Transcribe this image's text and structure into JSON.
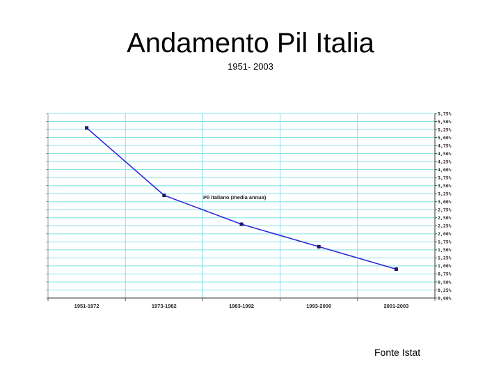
{
  "slide": {
    "title": "Andamento Pil Italia",
    "subtitle": "1951- 2003",
    "source": "Fonte Istat"
  },
  "chart_data": {
    "type": "line",
    "categories": [
      "1951-1972",
      "1973-1982",
      "1983-1992",
      "1993-2000",
      "2001-2003"
    ],
    "series": [
      {
        "name": "Pil italiano (media annua)",
        "values": [
          5.3,
          3.2,
          2.3,
          1.6,
          0.9
        ]
      }
    ],
    "y_ticks": [
      "0,00%",
      "0,25%",
      "0,50%",
      "0,75%",
      "1,00%",
      "1,25%",
      "1,50%",
      "1,75%",
      "2,00%",
      "2,25%",
      "2,50%",
      "2,75%",
      "3,00%",
      "3,25%",
      "3,50%",
      "3,75%",
      "4,00%",
      "4,25%",
      "4,50%",
      "4,75%",
      "5,00%",
      "5,25%",
      "5,50%",
      "5,75%"
    ],
    "ylim": [
      0,
      5.75
    ],
    "y_axis_side": "right",
    "grid": true,
    "colors": {
      "line": "#2b2bd6",
      "grid": "#7fe0e8",
      "marker": "#1a1a6e"
    }
  }
}
